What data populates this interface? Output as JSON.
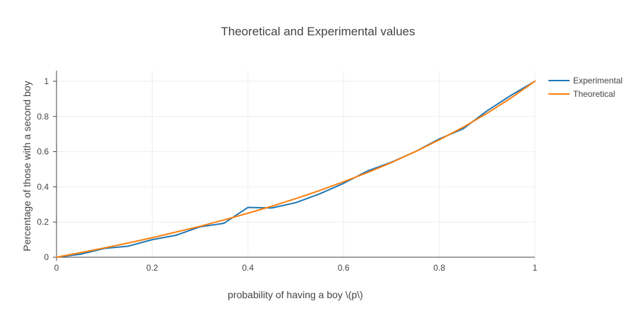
{
  "chart_data": {
    "type": "line",
    "title": "Theoretical and Experimental values",
    "xlabel": "probability of having a boy \\(p\\)",
    "ylabel": "Percentage of those with a second boy",
    "xlim": [
      0,
      1
    ],
    "ylim": [
      -0.02,
      1.06
    ],
    "x_ticks": [
      "0",
      "0.2",
      "0.4",
      "0.6",
      "0.8",
      "1"
    ],
    "y_ticks": [
      "0",
      "0.2",
      "0.4",
      "0.6",
      "0.8",
      "1"
    ],
    "grid": true,
    "legend_position": "top-right",
    "series": [
      {
        "name": "Experimental",
        "color": "#1f77b4",
        "x": [
          0,
          0.05,
          0.1,
          0.15,
          0.2,
          0.25,
          0.3,
          0.35,
          0.4,
          0.45,
          0.5,
          0.55,
          0.6,
          0.65,
          0.7,
          0.75,
          0.8,
          0.85,
          0.9,
          0.95,
          1
        ],
        "y": [
          0,
          0.017,
          0.05,
          0.063,
          0.1,
          0.125,
          0.173,
          0.193,
          0.283,
          0.28,
          0.31,
          0.36,
          0.42,
          0.49,
          0.54,
          0.6,
          0.672,
          0.73,
          0.832,
          0.92,
          1
        ]
      },
      {
        "name": "Theoretical",
        "color": "#ff7f0e",
        "x": [
          0,
          0.05,
          0.1,
          0.15,
          0.2,
          0.25,
          0.3,
          0.35,
          0.4,
          0.45,
          0.5,
          0.55,
          0.6,
          0.65,
          0.7,
          0.75,
          0.8,
          0.85,
          0.9,
          0.95,
          1
        ],
        "y": [
          0,
          0.026,
          0.053,
          0.081,
          0.111,
          0.143,
          0.176,
          0.212,
          0.25,
          0.29,
          0.333,
          0.379,
          0.429,
          0.481,
          0.538,
          0.6,
          0.667,
          0.739,
          0.818,
          0.905,
          1
        ]
      }
    ]
  }
}
